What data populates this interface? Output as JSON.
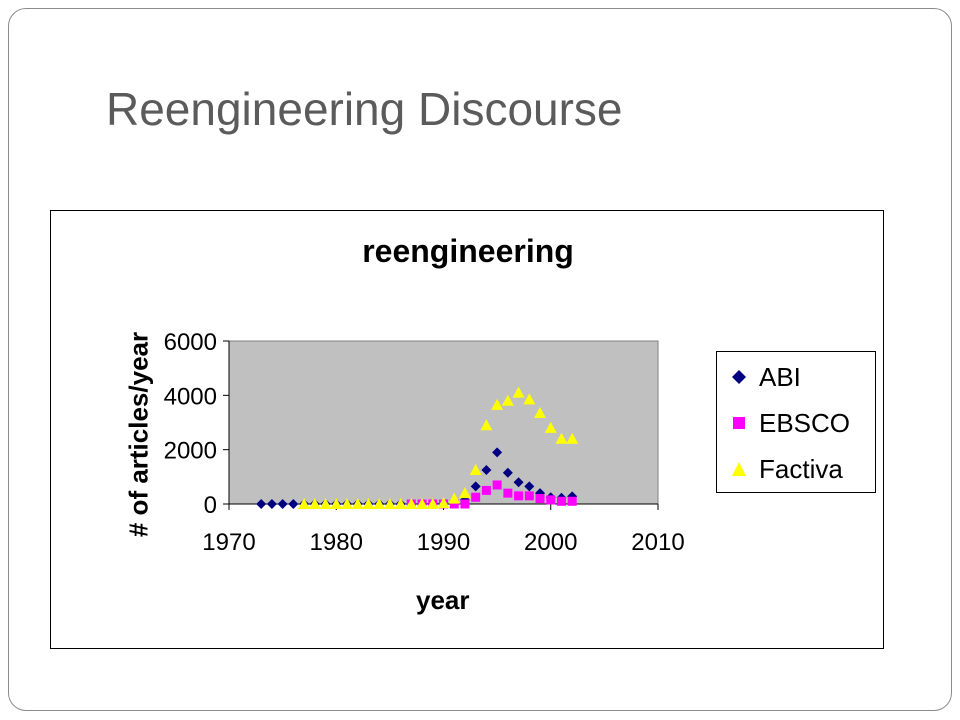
{
  "slide": {
    "title": "Reengineering Discourse"
  },
  "chart_data": {
    "type": "scatter",
    "title": "reengineering",
    "xlabel": "year",
    "ylabel": "# of articles/year",
    "xlim": [
      1970,
      2010
    ],
    "ylim": [
      0,
      6000
    ],
    "x_ticks": [
      1970,
      1980,
      1990,
      2000,
      2010
    ],
    "y_ticks": [
      0,
      2000,
      4000,
      6000
    ],
    "plot_background": "#c0c0c0",
    "grid": false,
    "legend_position": "right",
    "series": [
      {
        "name": "ABI",
        "marker": "diamond",
        "color": "#000080",
        "legend_icon": "diamond-icon",
        "points": [
          [
            1973,
            0
          ],
          [
            1974,
            0
          ],
          [
            1975,
            0
          ],
          [
            1976,
            0
          ],
          [
            1977,
            0
          ],
          [
            1978,
            0
          ],
          [
            1979,
            0
          ],
          [
            1980,
            0
          ],
          [
            1981,
            0
          ],
          [
            1982,
            0
          ],
          [
            1983,
            0
          ],
          [
            1984,
            0
          ],
          [
            1985,
            0
          ],
          [
            1986,
            0
          ],
          [
            1987,
            0
          ],
          [
            1988,
            10
          ],
          [
            1989,
            20
          ],
          [
            1990,
            30
          ],
          [
            1991,
            50
          ],
          [
            1992,
            150
          ],
          [
            1993,
            650
          ],
          [
            1994,
            1250
          ],
          [
            1995,
            1900
          ],
          [
            1996,
            1150
          ],
          [
            1997,
            800
          ],
          [
            1998,
            650
          ],
          [
            1999,
            400
          ],
          [
            2000,
            250
          ],
          [
            2001,
            230
          ],
          [
            2002,
            280
          ]
        ]
      },
      {
        "name": "EBSCO",
        "marker": "square",
        "color": "#ff00ff",
        "legend_icon": "square-icon",
        "points": [
          [
            1987,
            0
          ],
          [
            1988,
            0
          ],
          [
            1989,
            0
          ],
          [
            1990,
            0
          ],
          [
            1991,
            0
          ],
          [
            1992,
            0
          ],
          [
            1993,
            250
          ],
          [
            1994,
            500
          ],
          [
            1995,
            700
          ],
          [
            1996,
            400
          ],
          [
            1997,
            300
          ],
          [
            1998,
            300
          ],
          [
            1999,
            200
          ],
          [
            2000,
            150
          ],
          [
            2001,
            100
          ],
          [
            2002,
            100
          ]
        ]
      },
      {
        "name": "Factiva",
        "marker": "triangle",
        "color": "#ffff00",
        "legend_icon": "triangle-icon",
        "points": [
          [
            1977,
            0
          ],
          [
            1978,
            0
          ],
          [
            1979,
            0
          ],
          [
            1980,
            0
          ],
          [
            1981,
            0
          ],
          [
            1982,
            0
          ],
          [
            1983,
            0
          ],
          [
            1984,
            0
          ],
          [
            1985,
            0
          ],
          [
            1986,
            0
          ],
          [
            1987,
            0
          ],
          [
            1988,
            0
          ],
          [
            1989,
            0
          ],
          [
            1990,
            30
          ],
          [
            1991,
            200
          ],
          [
            1992,
            400
          ],
          [
            1993,
            1250
          ],
          [
            1994,
            2900
          ],
          [
            1995,
            3650
          ],
          [
            1996,
            3800
          ],
          [
            1997,
            4100
          ],
          [
            1998,
            3850
          ],
          [
            1999,
            3350
          ],
          [
            2000,
            2800
          ],
          [
            2001,
            2400
          ],
          [
            2002,
            2400
          ]
        ]
      }
    ]
  }
}
